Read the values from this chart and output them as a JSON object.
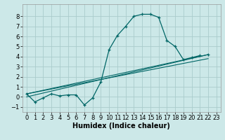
{
  "background_color": "#cce8e8",
  "grid_color": "#aacccc",
  "line_color": "#006666",
  "xlabel": "Humidex (Indice chaleur)",
  "xlabel_fontsize": 7,
  "tick_fontsize": 6,
  "xlim": [
    -0.5,
    23.5
  ],
  "ylim": [
    -1.5,
    9.2
  ],
  "yticks": [
    -1,
    0,
    1,
    2,
    3,
    4,
    5,
    6,
    7,
    8
  ],
  "xticks": [
    0,
    1,
    2,
    3,
    4,
    5,
    6,
    7,
    8,
    9,
    10,
    11,
    12,
    13,
    14,
    15,
    16,
    17,
    18,
    19,
    20,
    21,
    22,
    23
  ],
  "curve1_x": [
    0,
    1,
    2,
    3,
    4,
    5,
    6,
    7,
    8,
    9,
    10,
    11,
    12,
    13,
    14,
    15,
    16,
    17,
    18,
    19,
    20,
    21
  ],
  "curve1_y": [
    0.3,
    -0.5,
    -0.1,
    0.3,
    0.1,
    0.2,
    0.2,
    -0.8,
    -0.1,
    1.5,
    4.7,
    6.1,
    7.0,
    8.0,
    8.2,
    8.2,
    7.9,
    5.6,
    5.0,
    3.7,
    3.9,
    4.1
  ],
  "end_point_x": [
    22
  ],
  "end_point_y": [
    4.2
  ],
  "line1_x": [
    0,
    22
  ],
  "line1_y": [
    0.3,
    4.2
  ],
  "line2_x": [
    0,
    22
  ],
  "line2_y": [
    0.3,
    3.8
  ],
  "line3_x": [
    0,
    22
  ],
  "line3_y": [
    0.0,
    4.2
  ]
}
